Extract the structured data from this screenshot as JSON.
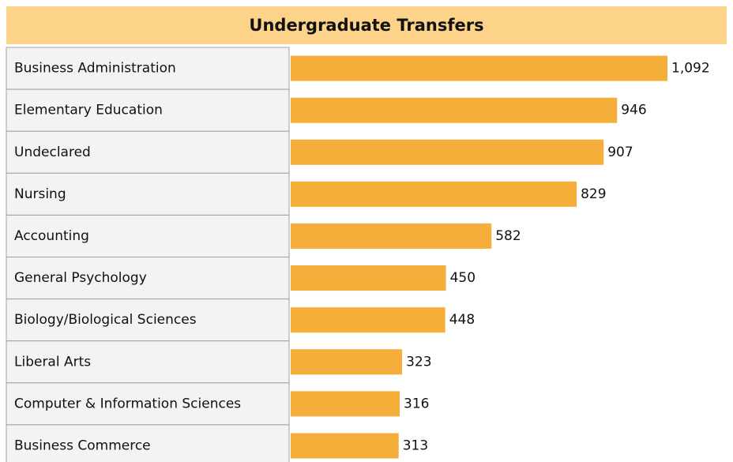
{
  "chart_data": {
    "type": "bar",
    "orientation": "horizontal",
    "title": "Undergraduate Transfers",
    "categories": [
      "Business Administration",
      "Elementary Education",
      "Undeclared",
      "Nursing",
      "Accounting",
      "General Psychology",
      "Biology/Biological Sciences",
      "Liberal Arts",
      "Computer & Information Sciences",
      "Business Commerce"
    ],
    "values": [
      1092,
      946,
      907,
      829,
      582,
      450,
      448,
      323,
      316,
      313
    ],
    "value_labels": [
      "1,092",
      "946",
      "907",
      "829",
      "582",
      "450",
      "448",
      "323",
      "316",
      "313"
    ],
    "color": "#f5ae3a"
  }
}
